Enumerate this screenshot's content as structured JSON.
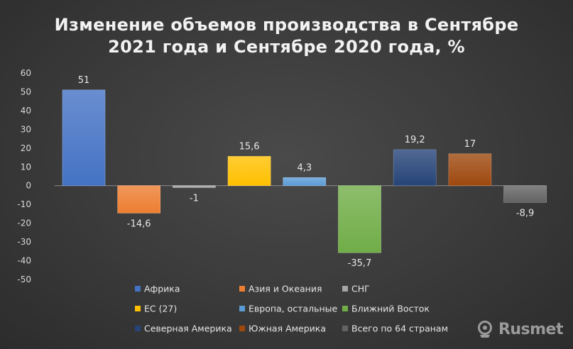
{
  "chart_data": {
    "type": "bar",
    "title_line1": "Изменение объемов производства в Сентябре",
    "title_line2": "2021 года и Сентябре 2020 года, %",
    "ylim": [
      -50,
      60
    ],
    "yticks": [
      60,
      50,
      40,
      30,
      20,
      10,
      0,
      -10,
      -20,
      -30,
      -40,
      -50
    ],
    "grid": false,
    "legend_position": "bottom",
    "categories": [
      "Африка",
      "Азия и Океания",
      "СНГ",
      "ЕС (27)",
      "Европа, остальные",
      "Ближний Восток",
      "Северная Америка",
      "Южная Америка",
      "Всего по 64 странам"
    ],
    "values": [
      51,
      -14.6,
      -1,
      15.6,
      4.3,
      -35.7,
      19.2,
      17,
      -8.9
    ],
    "value_labels": [
      "51",
      "-14,6",
      "-1",
      "15,6",
      "4,3",
      "-35,7",
      "19,2",
      "17",
      "-8,9"
    ],
    "colors": [
      "#4472c4",
      "#ed7d31",
      "#a5a5a5",
      "#ffc000",
      "#5b9bd5",
      "#70ad47",
      "#264478",
      "#9e480e",
      "#636363"
    ]
  },
  "watermark": {
    "text": "Rusmet",
    "icon": "rusmet-logo-icon"
  }
}
